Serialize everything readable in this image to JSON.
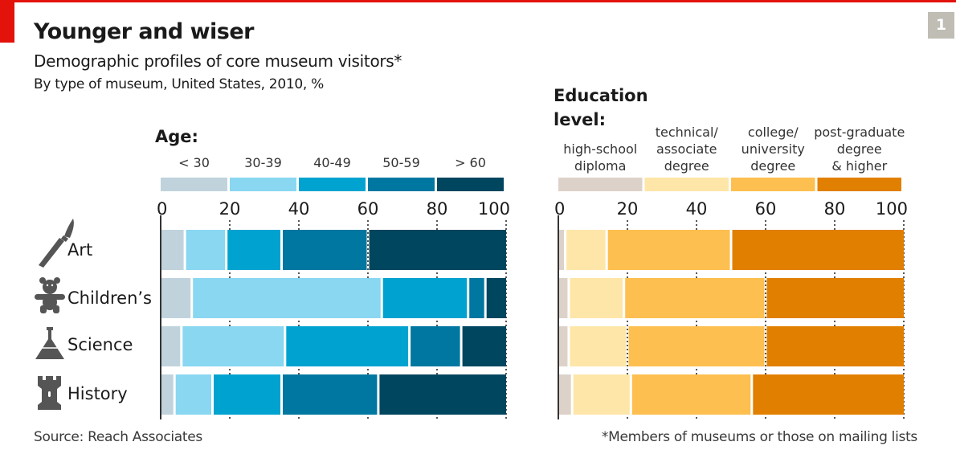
{
  "header": {
    "title": "Younger and wiser",
    "subtitle": "Demographic profiles of core museum visitors*",
    "description": "By type of museum, United States, 2010, %",
    "chart_number": "1"
  },
  "footer": {
    "source": "Source: Reach Associates",
    "note": "*Members of museums or those on mailing lists"
  },
  "colors": {
    "accent": "#e3120b",
    "badge": "#bfbdb4",
    "icon": "#555555",
    "age": [
      "#c0d3dd",
      "#89d7f1",
      "#00a3d0",
      "#0077a0",
      "#00465e"
    ],
    "education": [
      "#ddd2c9",
      "#fee6a8",
      "#fdbf4f",
      "#e17f00"
    ]
  },
  "chart_data": [
    {
      "type": "bar",
      "stacked": true,
      "orientation": "horizontal",
      "title": "Age:",
      "categories": [
        "Art",
        "Children’s",
        "Science",
        "History"
      ],
      "category_icons": [
        "paintbrush-icon",
        "teddy-bear-icon",
        "flask-icon",
        "castle-tower-icon"
      ],
      "xlim": [
        0,
        100
      ],
      "xticks": [
        "0",
        "20",
        "40",
        "60",
        "80",
        "100"
      ],
      "legend_position": "top",
      "series": [
        {
          "name": "< 30",
          "values": [
            7,
            9,
            6,
            4
          ]
        },
        {
          "name": "30-39",
          "values": [
            12,
            55,
            30,
            11
          ]
        },
        {
          "name": "40-49",
          "values": [
            16,
            25,
            36,
            20
          ]
        },
        {
          "name": "50-59",
          "values": [
            25,
            5,
            15,
            28
          ]
        },
        {
          "name": "> 60",
          "values": [
            40,
            6,
            13,
            37
          ]
        }
      ]
    },
    {
      "type": "bar",
      "stacked": true,
      "orientation": "horizontal",
      "title_lines": [
        "Education",
        "level:"
      ],
      "categories": [
        "Art",
        "Children’s",
        "Science",
        "History"
      ],
      "xlim": [
        0,
        100
      ],
      "xticks": [
        "0",
        "20",
        "40",
        "60",
        "80",
        "100"
      ],
      "legend_position": "top",
      "series": [
        {
          "name": "high-school diploma",
          "name_lines": [
            "high-school",
            "diploma"
          ],
          "values": [
            2,
            3,
            3,
            4
          ]
        },
        {
          "name": "technical/ associate degree",
          "name_lines": [
            "technical/",
            "associate",
            "degree"
          ],
          "values": [
            12,
            16,
            17,
            17
          ]
        },
        {
          "name": "college/ university degree",
          "name_lines": [
            "college/",
            "university",
            "degree"
          ],
          "values": [
            36,
            41,
            40,
            35
          ]
        },
        {
          "name": "post-graduate degree & higher",
          "name_lines": [
            "post-graduate",
            "degree",
            "& higher"
          ],
          "values": [
            50,
            40,
            40,
            44
          ]
        }
      ]
    }
  ]
}
